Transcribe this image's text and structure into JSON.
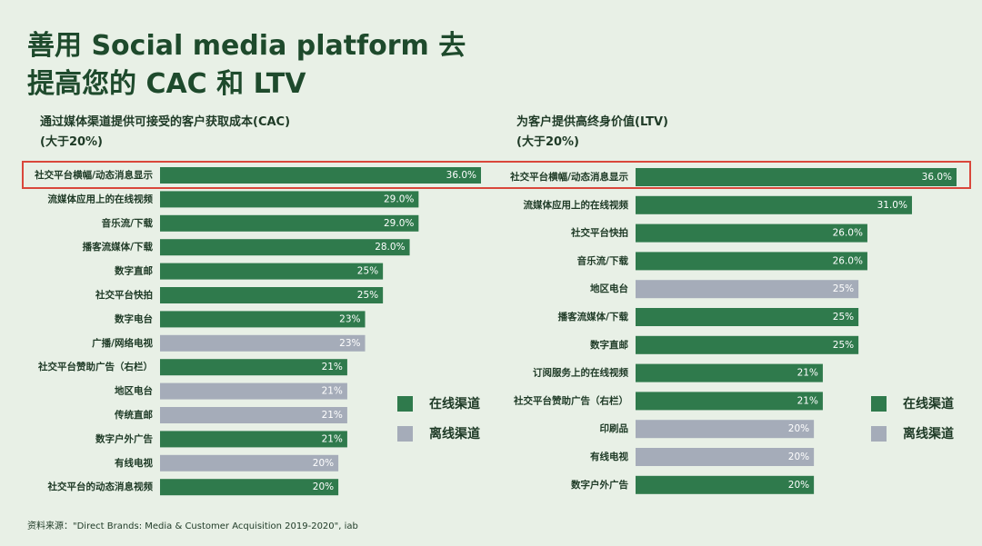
{
  "title_line1": "善用 Social media platform 去",
  "title_line2": "提高您的 CAC 和 LTV",
  "colors": {
    "online": "#2f7a4c",
    "offline": "#a5acb9",
    "background": "#e8f0e6",
    "highlight": "#d9473b"
  },
  "legend": {
    "online": "在线渠道",
    "offline": "离线渠道"
  },
  "source": "资料来源：\"Direct Brands: Media & Customer Acquisition 2019-2020\", iab",
  "chart_data": [
    {
      "type": "bar",
      "orientation": "horizontal",
      "title": "通过媒体渠道提供可接受的客户获取成本(CAC)",
      "subtitle": "(大于20%)",
      "xlim": [
        0,
        36
      ],
      "categories": [
        "社交平台横幅/动态消息显示",
        "流媒体应用上的在线视频",
        "音乐流/下载",
        "播客流媒体/下载",
        "数字直邮",
        "社交平台快拍",
        "数字电台",
        "广播/网络电视",
        "社交平台赞助广告（右栏）",
        "地区电台",
        "传统直邮",
        "数字户外广告",
        "有线电视",
        "社交平台的动态消息视频"
      ],
      "values": [
        36,
        29,
        29,
        28,
        25,
        25,
        23,
        23,
        21,
        21,
        21,
        21,
        20,
        20
      ],
      "labels": [
        "36.0%",
        "29.0%",
        "29.0%",
        "28.0%",
        "25%",
        "25%",
        "23%",
        "23%",
        "21%",
        "21%",
        "21%",
        "21%",
        "20%",
        "20%"
      ],
      "channel": [
        "online",
        "online",
        "online",
        "online",
        "online",
        "online",
        "online",
        "offline",
        "online",
        "offline",
        "offline",
        "online",
        "offline",
        "online"
      ]
    },
    {
      "type": "bar",
      "orientation": "horizontal",
      "title": "为客户提供高终身价值(LTV)",
      "subtitle": "(大于20%)",
      "xlim": [
        0,
        36
      ],
      "categories": [
        "社交平台横幅/动态消息显示",
        "流媒体应用上的在线视频",
        "社交平台快拍",
        "音乐流/下载",
        "地区电台",
        "播客流媒体/下载",
        "数字直邮",
        "订阅服务上的在线视频",
        "社交平台赞助广告（右栏）",
        "印刷品",
        "有线电视",
        "数字户外广告"
      ],
      "values": [
        36,
        31,
        26,
        26,
        25,
        25,
        25,
        21,
        21,
        20,
        20,
        20
      ],
      "labels": [
        "36.0%",
        "31.0%",
        "26.0%",
        "26.0%",
        "25%",
        "25%",
        "25%",
        "21%",
        "21%",
        "20%",
        "20%",
        "20%"
      ],
      "channel": [
        "online",
        "online",
        "online",
        "online",
        "offline",
        "online",
        "online",
        "online",
        "online",
        "offline",
        "offline",
        "online"
      ]
    }
  ]
}
